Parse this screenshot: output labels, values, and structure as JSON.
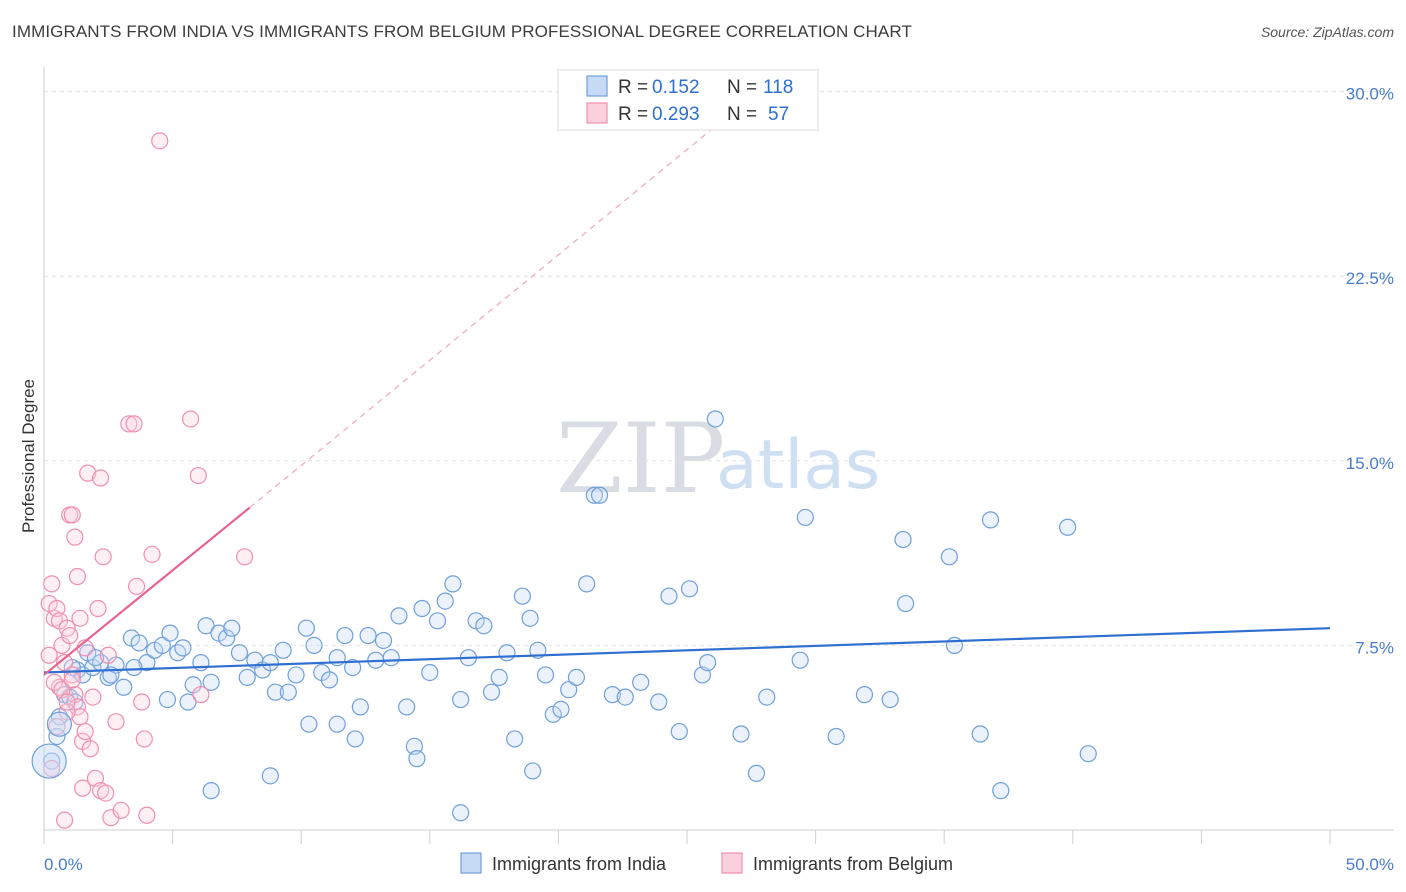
{
  "header": {
    "title": "IMMIGRANTS FROM INDIA VS IMMIGRANTS FROM BELGIUM PROFESSIONAL DEGREE CORRELATION CHART",
    "source": "Source: ZipAtlas.com"
  },
  "watermark": {
    "zip": "ZIP",
    "atlas": "atlas"
  },
  "legend": {
    "india": {
      "r_label": "R =",
      "r_value": "0.152",
      "n_label": "N =",
      "n_value": "118"
    },
    "belgium": {
      "r_label": "R =",
      "r_value": "0.293",
      "n_label": "N =",
      "n_value": "57"
    }
  },
  "chart_data": {
    "type": "scatter",
    "title": "IMMIGRANTS FROM INDIA VS IMMIGRANTS FROM BELGIUM PROFESSIONAL DEGREE CORRELATION CHART",
    "xlabel": "",
    "ylabel": "Professional Degree",
    "xlim": [
      0,
      50
    ],
    "ylim": [
      0,
      31
    ],
    "x_tick_labels": [
      "0.0%",
      "50.0%"
    ],
    "y_ticks": [
      7.5,
      15.0,
      22.5,
      30.0
    ],
    "y_tick_labels": [
      "7.5%",
      "15.0%",
      "22.5%",
      "30.0%"
    ],
    "grid": true,
    "legend_position": "top-center",
    "colors": {
      "india": "#6f9fdc",
      "belgium": "#f08fae",
      "india_line": "#2f6fd0",
      "belgium_line": "#e8638f"
    },
    "series": [
      {
        "name": "Immigrants from India",
        "trend": {
          "x": [
            0,
            50
          ],
          "y": [
            6.4,
            8.2
          ]
        },
        "points": [
          [
            0.3,
            2.8
          ],
          [
            0.5,
            3.8
          ],
          [
            0.6,
            4.6
          ],
          [
            0.8,
            5.5
          ],
          [
            1.0,
            5.4
          ],
          [
            1.2,
            5.2
          ],
          [
            1.3,
            6.5
          ],
          [
            1.5,
            6.3
          ],
          [
            1.7,
            7.2
          ],
          [
            1.9,
            6.6
          ],
          [
            2.2,
            6.8
          ],
          [
            2.5,
            6.2
          ],
          [
            2.8,
            6.7
          ],
          [
            3.1,
            5.8
          ],
          [
            3.4,
            7.8
          ],
          [
            3.7,
            7.6
          ],
          [
            4.0,
            6.8
          ],
          [
            4.3,
            7.3
          ],
          [
            4.6,
            7.5
          ],
          [
            4.9,
            8.0
          ],
          [
            5.2,
            7.2
          ],
          [
            5.4,
            7.4
          ],
          [
            5.6,
            5.2
          ],
          [
            5.8,
            5.9
          ],
          [
            6.1,
            6.8
          ],
          [
            6.3,
            8.3
          ],
          [
            6.5,
            6.0
          ],
          [
            6.8,
            8.0
          ],
          [
            7.1,
            7.8
          ],
          [
            7.3,
            8.2
          ],
          [
            7.6,
            7.2
          ],
          [
            7.9,
            6.2
          ],
          [
            8.2,
            6.9
          ],
          [
            8.5,
            6.5
          ],
          [
            8.8,
            6.8
          ],
          [
            9.0,
            5.6
          ],
          [
            9.3,
            7.3
          ],
          [
            9.5,
            5.6
          ],
          [
            9.8,
            6.3
          ],
          [
            10.2,
            8.2
          ],
          [
            10.5,
            7.5
          ],
          [
            10.8,
            6.4
          ],
          [
            11.1,
            6.1
          ],
          [
            11.4,
            7.0
          ],
          [
            11.7,
            7.9
          ],
          [
            12.0,
            6.6
          ],
          [
            12.3,
            5.0
          ],
          [
            12.6,
            7.9
          ],
          [
            12.9,
            6.9
          ],
          [
            13.2,
            7.7
          ],
          [
            13.5,
            7.0
          ],
          [
            13.8,
            8.7
          ],
          [
            14.1,
            5.0
          ],
          [
            14.4,
            3.4
          ],
          [
            14.7,
            9.0
          ],
          [
            15.0,
            6.4
          ],
          [
            15.3,
            8.5
          ],
          [
            15.6,
            9.3
          ],
          [
            15.9,
            10.0
          ],
          [
            16.2,
            5.3
          ],
          [
            16.5,
            7.0
          ],
          [
            16.8,
            8.5
          ],
          [
            17.1,
            8.3
          ],
          [
            17.4,
            5.6
          ],
          [
            17.7,
            6.2
          ],
          [
            18.0,
            7.2
          ],
          [
            18.3,
            3.7
          ],
          [
            18.6,
            9.5
          ],
          [
            18.9,
            8.6
          ],
          [
            19.2,
            7.3
          ],
          [
            19.5,
            6.3
          ],
          [
            19.8,
            4.7
          ],
          [
            20.1,
            4.9
          ],
          [
            20.4,
            5.7
          ],
          [
            20.7,
            6.2
          ],
          [
            21.1,
            10.0
          ],
          [
            21.4,
            13.6
          ],
          [
            21.6,
            13.6
          ],
          [
            22.1,
            5.5
          ],
          [
            22.6,
            5.4
          ],
          [
            23.2,
            6.0
          ],
          [
            23.9,
            5.2
          ],
          [
            24.3,
            9.5
          ],
          [
            24.7,
            4.0
          ],
          [
            25.1,
            9.8
          ],
          [
            25.6,
            6.3
          ],
          [
            25.8,
            6.8
          ],
          [
            26.1,
            16.7
          ],
          [
            27.1,
            3.9
          ],
          [
            27.7,
            2.3
          ],
          [
            28.1,
            5.4
          ],
          [
            29.4,
            6.9
          ],
          [
            29.6,
            12.7
          ],
          [
            30.8,
            3.8
          ],
          [
            31.9,
            5.5
          ],
          [
            32.9,
            5.3
          ],
          [
            33.4,
            11.8
          ],
          [
            33.5,
            9.2
          ],
          [
            35.2,
            11.1
          ],
          [
            35.4,
            7.5
          ],
          [
            36.4,
            3.9
          ],
          [
            36.8,
            12.6
          ],
          [
            37.2,
            1.6
          ],
          [
            39.8,
            12.3
          ],
          [
            40.6,
            3.1
          ],
          [
            14.5,
            2.9
          ],
          [
            16.2,
            0.7
          ],
          [
            6.5,
            1.6
          ],
          [
            8.8,
            2.2
          ],
          [
            12.1,
            3.7
          ],
          [
            19.0,
            2.4
          ],
          [
            4.8,
            5.3
          ],
          [
            10.3,
            4.3
          ],
          [
            11.4,
            4.3
          ],
          [
            3.5,
            6.6
          ],
          [
            2.0,
            7.0
          ],
          [
            1.1,
            6.6
          ],
          [
            2.6,
            6.3
          ]
        ]
      },
      {
        "name": "Immigrants from Belgium",
        "trend": {
          "x": [
            0,
            8
          ],
          "y": [
            6.3,
            13.1
          ]
        },
        "trend_extended": {
          "x": [
            8,
            26
          ],
          "y": [
            13.1,
            28.5
          ]
        },
        "points": [
          [
            0.2,
            9.2
          ],
          [
            0.3,
            10.0
          ],
          [
            0.4,
            8.6
          ],
          [
            0.5,
            9.0
          ],
          [
            0.6,
            8.5
          ],
          [
            0.7,
            7.5
          ],
          [
            0.8,
            6.8
          ],
          [
            0.9,
            8.2
          ],
          [
            1.0,
            7.9
          ],
          [
            1.1,
            6.3
          ],
          [
            1.2,
            5.5
          ],
          [
            1.3,
            5.0
          ],
          [
            1.4,
            4.6
          ],
          [
            1.5,
            3.6
          ],
          [
            1.6,
            4.0
          ],
          [
            1.8,
            3.3
          ],
          [
            2.0,
            2.1
          ],
          [
            2.2,
            1.6
          ],
          [
            2.4,
            1.5
          ],
          [
            2.6,
            0.5
          ],
          [
            0.6,
            5.8
          ],
          [
            0.9,
            4.8
          ],
          [
            1.0,
            12.8
          ],
          [
            1.1,
            12.8
          ],
          [
            1.2,
            11.9
          ],
          [
            1.3,
            10.3
          ],
          [
            1.7,
            14.5
          ],
          [
            2.2,
            14.3
          ],
          [
            2.3,
            11.1
          ],
          [
            2.5,
            7.1
          ],
          [
            2.8,
            4.4
          ],
          [
            3.0,
            0.8
          ],
          [
            3.3,
            16.5
          ],
          [
            3.5,
            16.5
          ],
          [
            3.6,
            9.9
          ],
          [
            3.8,
            5.2
          ],
          [
            3.9,
            3.7
          ],
          [
            4.0,
            0.6
          ],
          [
            4.2,
            11.2
          ],
          [
            4.5,
            28.0
          ],
          [
            5.7,
            16.7
          ],
          [
            6.0,
            14.4
          ],
          [
            6.1,
            5.5
          ],
          [
            7.8,
            11.1
          ],
          [
            0.4,
            6.0
          ],
          [
            0.7,
            5.7
          ],
          [
            1.9,
            5.4
          ],
          [
            0.3,
            2.5
          ],
          [
            1.5,
            1.7
          ],
          [
            0.8,
            0.4
          ],
          [
            1.1,
            6.1
          ],
          [
            0.2,
            7.1
          ],
          [
            0.5,
            4.2
          ],
          [
            1.4,
            8.6
          ],
          [
            1.6,
            7.4
          ],
          [
            2.1,
            9.0
          ],
          [
            0.9,
            5.2
          ]
        ]
      }
    ]
  },
  "bottom_legend": {
    "india_label": "Immigrants from India",
    "belgium_label": "Immigrants from Belgium"
  }
}
